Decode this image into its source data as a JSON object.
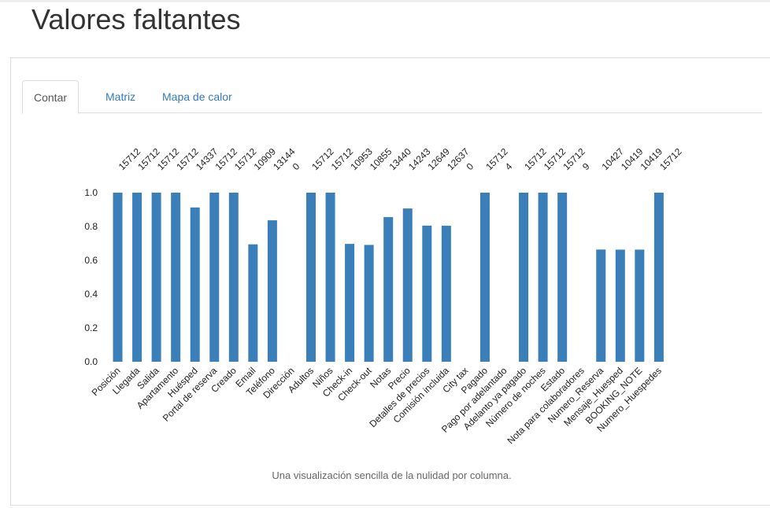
{
  "page": {
    "title": "Valores faltantes",
    "caption": "Una visualización sencilla de la nulidad por columna."
  },
  "tabs": [
    {
      "label": "Contar",
      "active": true
    },
    {
      "label": "Matriz",
      "active": false
    },
    {
      "label": "Mapa de calor",
      "active": false
    }
  ],
  "colors": {
    "bar": "#3a7fba",
    "tab_link": "#337ab7"
  },
  "chart_data": {
    "type": "bar",
    "categories": [
      "Posición",
      "Llegada",
      "Salida",
      "Apartamento",
      "Huésped",
      "Portal de reserva",
      "Creado",
      "Email",
      "Teléfono",
      "Dirección",
      "Adultos",
      "Niños",
      "Check-in",
      "Check-out",
      "Notas",
      "Precio",
      "Detalles de precios",
      "Comisión incluida",
      "City tax",
      "Pagado",
      "Pago por adelantado",
      "Adelanto ya pagado",
      "Número de noches",
      "Estado",
      "Nota para colaboradores",
      "Numero_Reserva",
      "Mensaje_Huesped",
      "BOOKING_NOTE",
      "Numero_Huespedes"
    ],
    "counts": [
      15712,
      15712,
      15712,
      15712,
      14337,
      15712,
      15712,
      10909,
      13144,
      0,
      15712,
      15712,
      10953,
      10855,
      13440,
      14243,
      12649,
      12637,
      0,
      15712,
      4,
      15712,
      15712,
      15712,
      9,
      10427,
      10419,
      10419,
      15712
    ],
    "total": 15712,
    "ylim": [
      0,
      1
    ],
    "yticks": [
      "0.0",
      "0.2",
      "0.4",
      "0.6",
      "0.8",
      "1.0"
    ],
    "grid": false
  }
}
